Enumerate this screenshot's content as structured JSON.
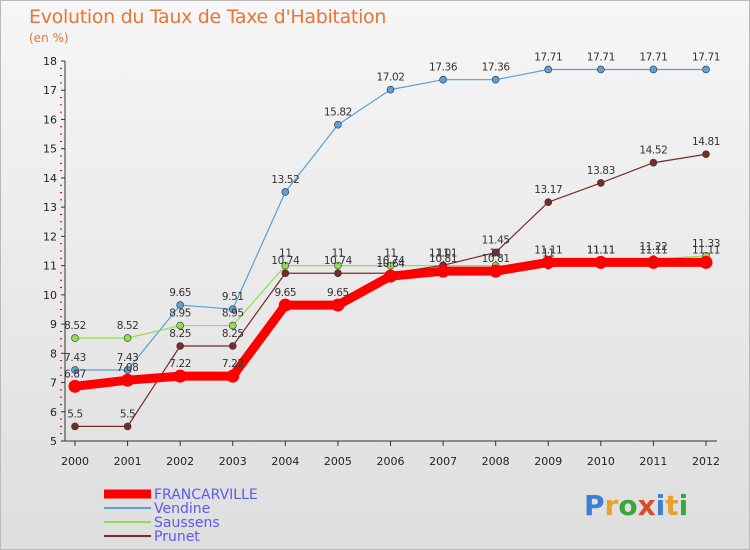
{
  "title": "Evolution du Taux de Taxe d'Habitation",
  "unit": "(en %)",
  "logo": "Proxiti",
  "chart_data": {
    "type": "line",
    "title": "Evolution du Taux de Taxe d'Habitation",
    "ylabel": "(en %)",
    "xlabel": "",
    "ylim": [
      5,
      18
    ],
    "grid": false,
    "legend_position": "bottom-left",
    "x": [
      "2000",
      "2001",
      "2002",
      "2003",
      "2004",
      "2005",
      "2006",
      "2007",
      "2008",
      "2009",
      "2010",
      "2011",
      "2012"
    ],
    "y_ticks": [
      "5",
      "6",
      "7",
      "8",
      "9",
      "10",
      "11",
      "12",
      "13",
      "14",
      "15",
      "16",
      "17",
      "18"
    ],
    "series": [
      {
        "name": "FRANCARVILLE",
        "color": "#ff0000",
        "values": [
          6.87,
          7.08,
          7.22,
          7.22,
          9.65,
          9.65,
          10.64,
          10.81,
          10.81,
          11.11,
          11.11,
          11.11,
          11.11
        ],
        "labels": [
          "6.87",
          "7.08",
          "7.22",
          "7.22",
          "9.65",
          "9.65",
          "10.64",
          "10.81",
          "10.81",
          "11.11",
          "11.11",
          "11.11",
          "11.11"
        ]
      },
      {
        "name": "Vendine",
        "color": "#5b9fd6",
        "values": [
          7.43,
          7.43,
          9.65,
          9.51,
          13.52,
          15.82,
          17.02,
          17.36,
          17.36,
          17.71,
          17.71,
          17.71,
          17.71
        ],
        "labels": [
          "7.43",
          "7.43",
          "9.65",
          "9.51",
          "13.52",
          "15.82",
          "17.02",
          "17.36",
          "17.36",
          "17.71",
          "17.71",
          "17.71",
          "17.71"
        ]
      },
      {
        "name": "Saussens",
        "color": "#8ee050",
        "values": [
          8.52,
          8.52,
          8.95,
          8.95,
          11,
          11,
          11,
          11,
          11,
          11,
          11.11,
          11.22,
          11.33
        ],
        "labels": [
          "8.52",
          "8.52",
          "8.95",
          "8.95",
          "11",
          "11",
          "11",
          "11",
          "11",
          "11",
          "11.11",
          "11.22",
          "11.33"
        ]
      },
      {
        "name": "Prunet",
        "color": "#7a2a2a",
        "values": [
          5.5,
          5.5,
          8.25,
          8.25,
          10.74,
          10.74,
          10.74,
          11.01,
          11.45,
          13.17,
          13.83,
          14.52,
          14.81
        ],
        "labels": [
          "5.5",
          "5.5",
          "8.25",
          "8.25",
          "10.74",
          "10.74",
          "10.74",
          "11.01",
          "11.45",
          "13.17",
          "13.83",
          "14.52",
          "14.81"
        ]
      }
    ]
  }
}
